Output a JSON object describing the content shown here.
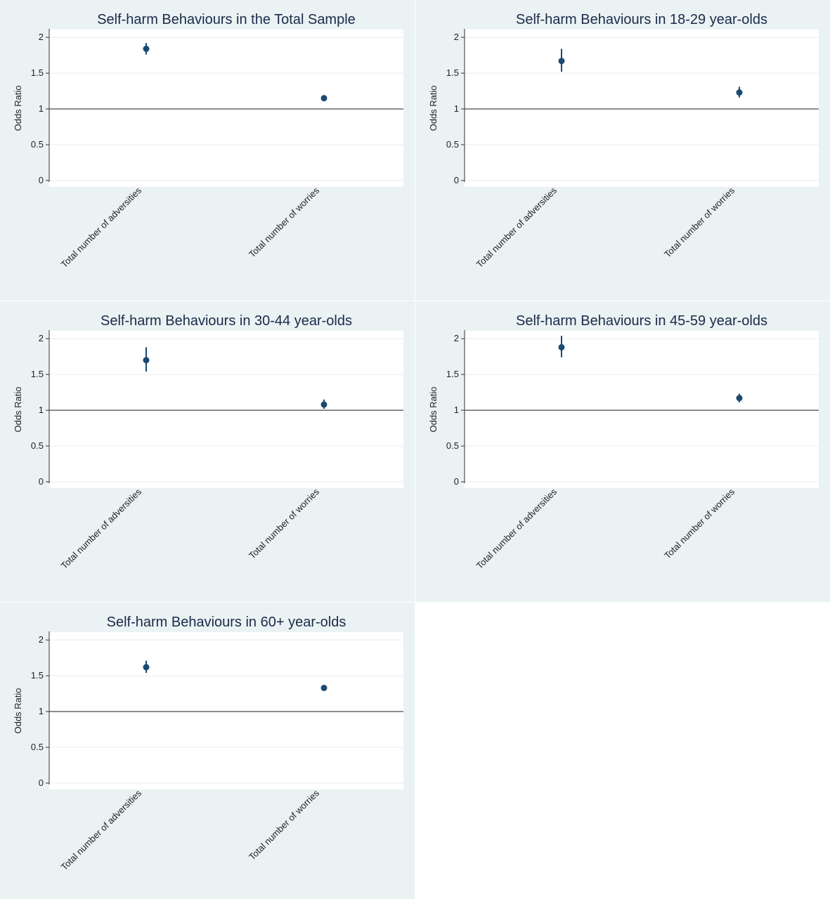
{
  "colors": {
    "panel_bg": "#eaf2f3",
    "plot_bg": "#ffffff",
    "marker": "#1a4a72",
    "grid": "#e9ecef",
    "refline": "#4a4a4a"
  },
  "chart_data": [
    {
      "type": "scatter",
      "title": "Self-harm Behaviours in the Total Sample",
      "ylabel": "Odds Ratio",
      "ylim": [
        0,
        2.1
      ],
      "yticks": [
        0,
        0.5,
        1,
        1.5,
        2
      ],
      "ytick_labels": [
        "0",
        "0.5",
        "1",
        "1.5",
        "2"
      ],
      "categories": [
        "Total number of adversities",
        "Total number of worries"
      ],
      "values": [
        1.84,
        1.15
      ],
      "ci_low": [
        1.76,
        1.12
      ],
      "ci_high": [
        1.92,
        1.18
      ],
      "reference_line": 1,
      "grid": true
    },
    {
      "type": "scatter",
      "title": "Self-harm Behaviours in 18-29 year-olds",
      "ylabel": "Odds Ratio",
      "ylim": [
        0,
        2.1
      ],
      "yticks": [
        0,
        0.5,
        1,
        1.5,
        2
      ],
      "ytick_labels": [
        "0",
        "0.5",
        "1",
        "1.5",
        "2"
      ],
      "categories": [
        "Total number of adversities",
        "Total number of worries"
      ],
      "values": [
        1.67,
        1.23
      ],
      "ci_low": [
        1.52,
        1.16
      ],
      "ci_high": [
        1.84,
        1.31
      ],
      "reference_line": 1,
      "grid": true
    },
    {
      "type": "scatter",
      "title": "Self-harm Behaviours in 30-44 year-olds",
      "ylabel": "Odds Ratio",
      "ylim": [
        0,
        2.1
      ],
      "yticks": [
        0,
        0.5,
        1,
        1.5,
        2
      ],
      "ytick_labels": [
        "0",
        "0.5",
        "1",
        "1.5",
        "2"
      ],
      "categories": [
        "Total number of adversities",
        "Total number of worries"
      ],
      "values": [
        1.7,
        1.08
      ],
      "ci_low": [
        1.54,
        1.02
      ],
      "ci_high": [
        1.88,
        1.15
      ],
      "reference_line": 1,
      "grid": true
    },
    {
      "type": "scatter",
      "title": "Self-harm Behaviours in 45-59 year-olds",
      "ylabel": "Odds Ratio",
      "ylim": [
        0,
        2.1
      ],
      "yticks": [
        0,
        0.5,
        1,
        1.5,
        2
      ],
      "ytick_labels": [
        "0",
        "0.5",
        "1",
        "1.5",
        "2"
      ],
      "categories": [
        "Total number of adversities",
        "Total number of worries"
      ],
      "values": [
        1.88,
        1.17
      ],
      "ci_low": [
        1.74,
        1.11
      ],
      "ci_high": [
        2.04,
        1.23
      ],
      "reference_line": 1,
      "grid": true
    },
    {
      "type": "scatter",
      "title": "Self-harm Behaviours in 60+ year-olds",
      "ylabel": "Odds Ratio",
      "ylim": [
        0,
        2.1
      ],
      "yticks": [
        0,
        0.5,
        1,
        1.5,
        2
      ],
      "ytick_labels": [
        "0",
        "0.5",
        "1",
        "1.5",
        "2"
      ],
      "categories": [
        "Total number of adversities",
        "Total number of worries"
      ],
      "values": [
        1.62,
        1.33
      ],
      "ci_low": [
        1.54,
        1.3
      ],
      "ci_high": [
        1.71,
        1.36
      ],
      "reference_line": 1,
      "grid": true
    }
  ]
}
